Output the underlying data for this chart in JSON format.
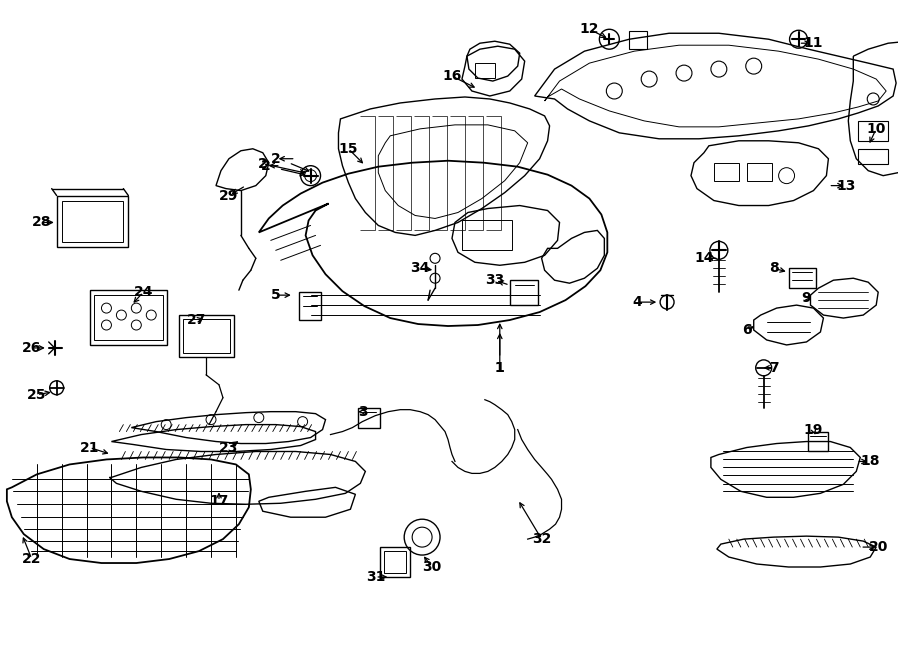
{
  "bg_color": "#ffffff",
  "line_color": "#000000",
  "lw": 1.0,
  "fig_width": 9.0,
  "fig_height": 6.61,
  "dpi": 100,
  "label_fontsize": 10,
  "label_fontsize_small": 9
}
